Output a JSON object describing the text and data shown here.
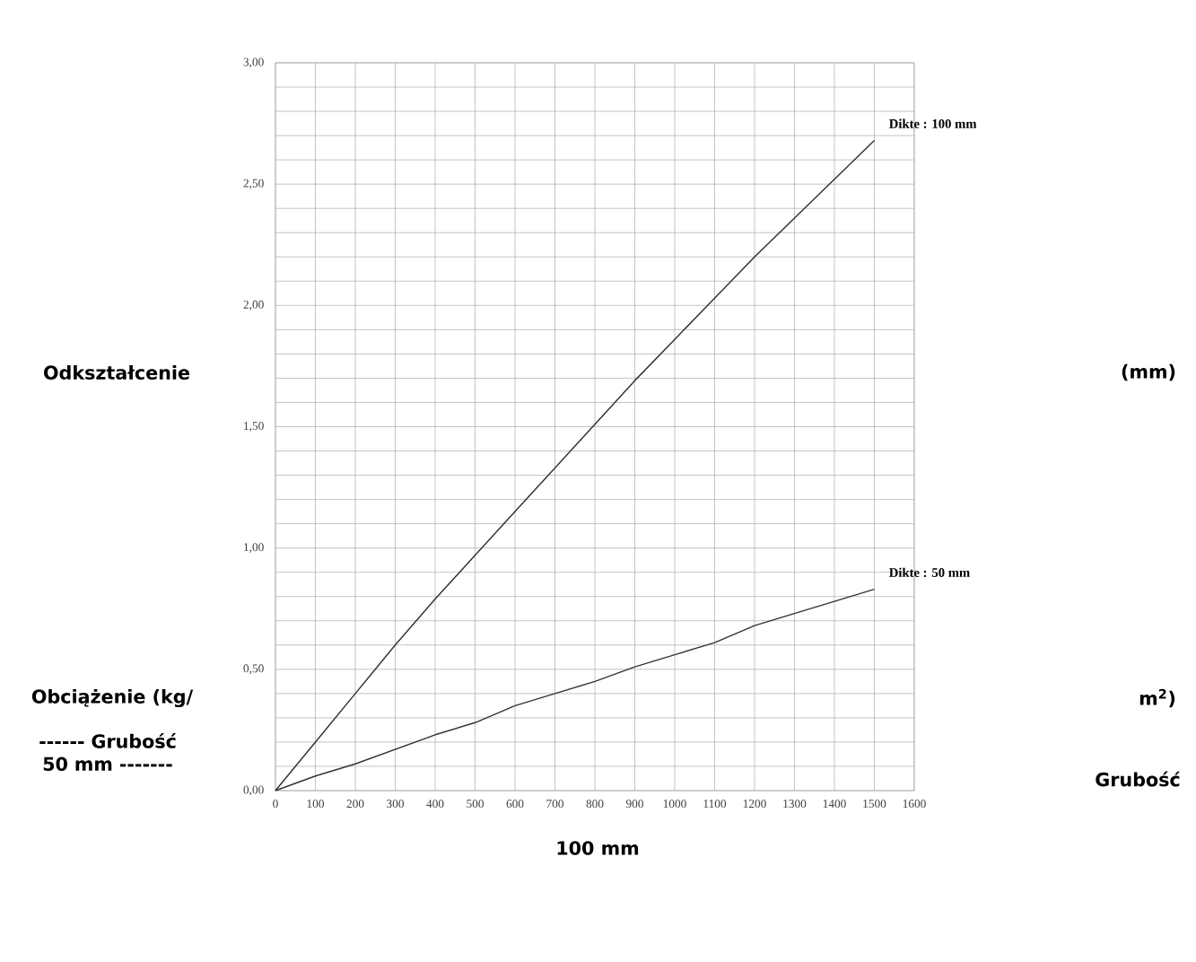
{
  "chart_data": {
    "type": "line",
    "annotations": [
      "Odkształcenie",
      "(mm)",
      "Obciążenie (kg/",
      "m$^{2}$)",
      "------ Grubość 50 mm -------",
      "Grubość",
      "100 mm"
    ],
    "x": [
      0,
      100,
      200,
      300,
      400,
      500,
      600,
      700,
      800,
      900,
      1000,
      1100,
      1200,
      1300,
      1400,
      1500
    ],
    "series": [
      {
        "name": "Dikte : 100 mm",
        "color": "#333333",
        "values": [
          0,
          0.2,
          0.4,
          0.6,
          0.79,
          0.97,
          1.15,
          1.33,
          1.51,
          1.69,
          1.86,
          2.03,
          2.2,
          2.36,
          2.52,
          2.68
        ]
      },
      {
        "name": "Dikte : 50 mm",
        "color": "#333333",
        "values": [
          0,
          0.06,
          0.11,
          0.17,
          0.23,
          0.28,
          0.35,
          0.4,
          0.45,
          0.51,
          0.56,
          0.61,
          0.68,
          0.73,
          0.78,
          0.83
        ]
      }
    ],
    "xlim": [
      0,
      1600
    ],
    "ylim": [
      0,
      3
    ],
    "xticks": [
      0,
      100,
      200,
      300,
      400,
      500,
      600,
      700,
      800,
      900,
      1000,
      1100,
      1200,
      1300,
      1400,
      1500,
      1600
    ],
    "yticks": [
      {
        "value": 0,
        "label": "0,00"
      },
      {
        "value": 0.1,
        "label": null
      },
      {
        "value": 0.2,
        "label": null
      },
      {
        "value": 0.3,
        "label": null
      },
      {
        "value": 0.4,
        "label": null
      },
      {
        "value": 0.5,
        "label": "0,50"
      },
      {
        "value": 0.6,
        "label": null
      },
      {
        "value": 0.7,
        "label": null
      },
      {
        "value": 0.8,
        "label": null
      },
      {
        "value": 0.9,
        "label": null
      },
      {
        "value": 1,
        "label": "1,00"
      },
      {
        "value": 1.1,
        "label": null
      },
      {
        "value": 1.2,
        "label": null
      },
      {
        "value": 1.3,
        "label": null
      },
      {
        "value": 1.4,
        "label": null
      },
      {
        "value": 1.5,
        "label": "1,50"
      },
      {
        "value": 1.6,
        "label": null
      },
      {
        "value": 1.7,
        "label": null
      },
      {
        "value": 1.8,
        "label": null
      },
      {
        "value": 1.9,
        "label": null
      },
      {
        "value": 2,
        "label": "2,00"
      },
      {
        "value": 2.1,
        "label": null
      },
      {
        "value": 2.2,
        "label": null
      },
      {
        "value": 2.3,
        "label": null
      },
      {
        "value": 2.4,
        "label": null
      },
      {
        "value": 2.5,
        "label": "2,50"
      },
      {
        "value": 2.6,
        "label": null
      },
      {
        "value": 2.7,
        "label": null
      },
      {
        "value": 2.8,
        "label": null
      },
      {
        "value": 2.9,
        "label": null
      },
      {
        "value": 3,
        "label": "3,00"
      }
    ],
    "grid": true,
    "marker": "none",
    "line_style": "solid",
    "legend": false
  }
}
